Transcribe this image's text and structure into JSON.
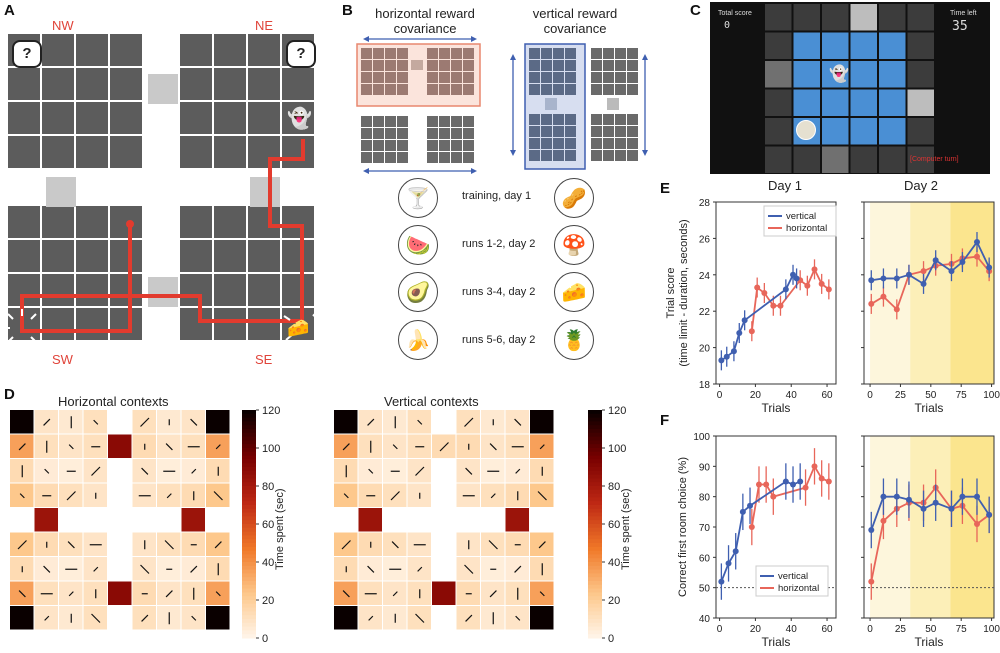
{
  "panels": {
    "a": "A",
    "b": "B",
    "c": "C",
    "d": "D",
    "e": "E",
    "f": "F"
  },
  "panel_a": {
    "nw": "NW",
    "ne": "NE",
    "sw": "SW",
    "se": "SE",
    "question": "?",
    "colors": {
      "room": "#5c5c5c",
      "door": "#c9c9c9",
      "path": "#e23b2e"
    }
  },
  "panel_b": {
    "horizontal_title": "horizontal reward\ncovariance",
    "vertical_title": "vertical reward\ncovariance",
    "runs": [
      {
        "label": "training, day 1",
        "left_icon": "cocktail-icon",
        "right_icon": "peanut-icon"
      },
      {
        "label": "runs 1-2, day 2",
        "left_icon": "watermelon-icon",
        "right_icon": "mushroom-icon"
      },
      {
        "label": "runs 3-4, day 2",
        "left_icon": "avocado-icon",
        "right_icon": "cheese-icon"
      },
      {
        "label": "runs 5-6, day 2",
        "left_icon": "banana-icon",
        "right_icon": "pineapple-icon"
      }
    ],
    "colors": {
      "horizontal": "#e8876f",
      "vertical": "#3f5fb0"
    }
  },
  "panel_c": {
    "total_score_label": "Total score",
    "total_score_value": "0",
    "time_left_label": "Time left",
    "time_left_value": "35",
    "turn_label": "[Computer turn]",
    "colors": {
      "tile": "#4a8fd4",
      "bg": "#111111"
    }
  },
  "panel_d": {
    "left_title": "Horizontal contexts",
    "right_title": "Vertical contexts",
    "colorbar_label": "Time spent (sec)",
    "colorbar_ticks": [
      "120",
      "100",
      "80",
      "60",
      "40",
      "20",
      "0"
    ]
  },
  "panel_e": {
    "day1": "Day 1",
    "day2": "Day 2",
    "ylabel": "Trial score\n(time limit - duration, seconds)",
    "xlabel": "Trials",
    "legend": [
      "horizontal",
      "vertical"
    ],
    "yticks": [
      "28",
      "26",
      "24",
      "22",
      "20",
      "18"
    ],
    "xticks_day1": [
      "0",
      "20",
      "40",
      "60"
    ],
    "xticks_day2": [
      "0",
      "25",
      "50",
      "75",
      "100"
    ]
  },
  "panel_f": {
    "ylabel": "Correct first room choice (%)",
    "xlabel": "Trials",
    "legend": [
      "horizontal",
      "vertical"
    ],
    "yticks": [
      "100",
      "90",
      "80",
      "70",
      "60",
      "50",
      "40"
    ],
    "xticks_day1": [
      "0",
      "20",
      "40",
      "60"
    ],
    "xticks_day2": [
      "0",
      "25",
      "50",
      "75",
      "100"
    ]
  },
  "chart_data": [
    {
      "type": "line",
      "panel": "E-day1",
      "xlabel": "Trials",
      "ylabel": "Trial score (time limit - duration, seconds)",
      "ylim": [
        18,
        28
      ],
      "xlim": [
        -2,
        65
      ],
      "series": [
        {
          "name": "horizontal",
          "color": "#e8665a",
          "x": [
            18,
            21,
            25,
            30,
            34,
            45,
            49,
            53,
            57,
            61
          ],
          "y": [
            20.9,
            23.3,
            23.0,
            22.3,
            22.3,
            23.7,
            23.4,
            24.3,
            23.5,
            23.2
          ]
        },
        {
          "name": "vertical",
          "color": "#3f5fb0",
          "x": [
            1,
            4,
            8,
            11,
            14,
            37,
            41,
            43
          ],
          "y": [
            19.3,
            19.5,
            19.8,
            20.8,
            21.5,
            23.2,
            24.0,
            23.8
          ]
        }
      ]
    },
    {
      "type": "line",
      "panel": "E-day2",
      "xlabel": "Trials",
      "ylim": [
        18,
        28
      ],
      "xlim": [
        -5,
        102
      ],
      "series": [
        {
          "name": "horizontal",
          "color": "#e8665a",
          "x": [
            1,
            11,
            22,
            32,
            44,
            54,
            67,
            76,
            88,
            98
          ],
          "y": [
            22.4,
            22.8,
            22.1,
            24.0,
            24.2,
            24.5,
            24.6,
            24.9,
            25.0,
            24.2
          ]
        },
        {
          "name": "vertical",
          "color": "#3f5fb0",
          "x": [
            1,
            11,
            22,
            32,
            44,
            54,
            67,
            76,
            88,
            98
          ],
          "y": [
            23.7,
            23.8,
            23.8,
            24.0,
            23.5,
            24.8,
            24.2,
            24.7,
            25.8,
            24.4
          ]
        }
      ]
    },
    {
      "type": "line",
      "panel": "F-day1",
      "xlabel": "Trials",
      "ylabel": "Correct first room choice (%)",
      "ylim": [
        40,
        100
      ],
      "xlim": [
        -2,
        65
      ],
      "series": [
        {
          "name": "horizontal",
          "color": "#e8665a",
          "x": [
            18,
            22,
            26,
            30,
            48,
            53,
            57,
            61
          ],
          "y": [
            70,
            84,
            84,
            80,
            83,
            90,
            86,
            85
          ]
        },
        {
          "name": "vertical",
          "color": "#3f5fb0",
          "x": [
            1,
            5,
            9,
            13,
            17,
            37,
            41,
            45
          ],
          "y": [
            52,
            58,
            62,
            75,
            77,
            85,
            84,
            85
          ]
        }
      ]
    },
    {
      "type": "line",
      "panel": "F-day2",
      "xlabel": "Trials",
      "ylim": [
        40,
        100
      ],
      "xlim": [
        -5,
        102
      ],
      "series": [
        {
          "name": "horizontal",
          "color": "#e8665a",
          "x": [
            1,
            11,
            22,
            32,
            44,
            54,
            67,
            76,
            88,
            98
          ],
          "y": [
            52,
            72,
            76,
            78,
            78,
            83,
            76,
            77,
            71,
            74
          ]
        },
        {
          "name": "vertical",
          "color": "#3f5fb0",
          "x": [
            1,
            11,
            22,
            32,
            44,
            54,
            67,
            76,
            88,
            98
          ],
          "y": [
            69,
            80,
            80,
            79,
            76,
            78,
            76,
            80,
            80,
            74
          ]
        }
      ]
    }
  ]
}
